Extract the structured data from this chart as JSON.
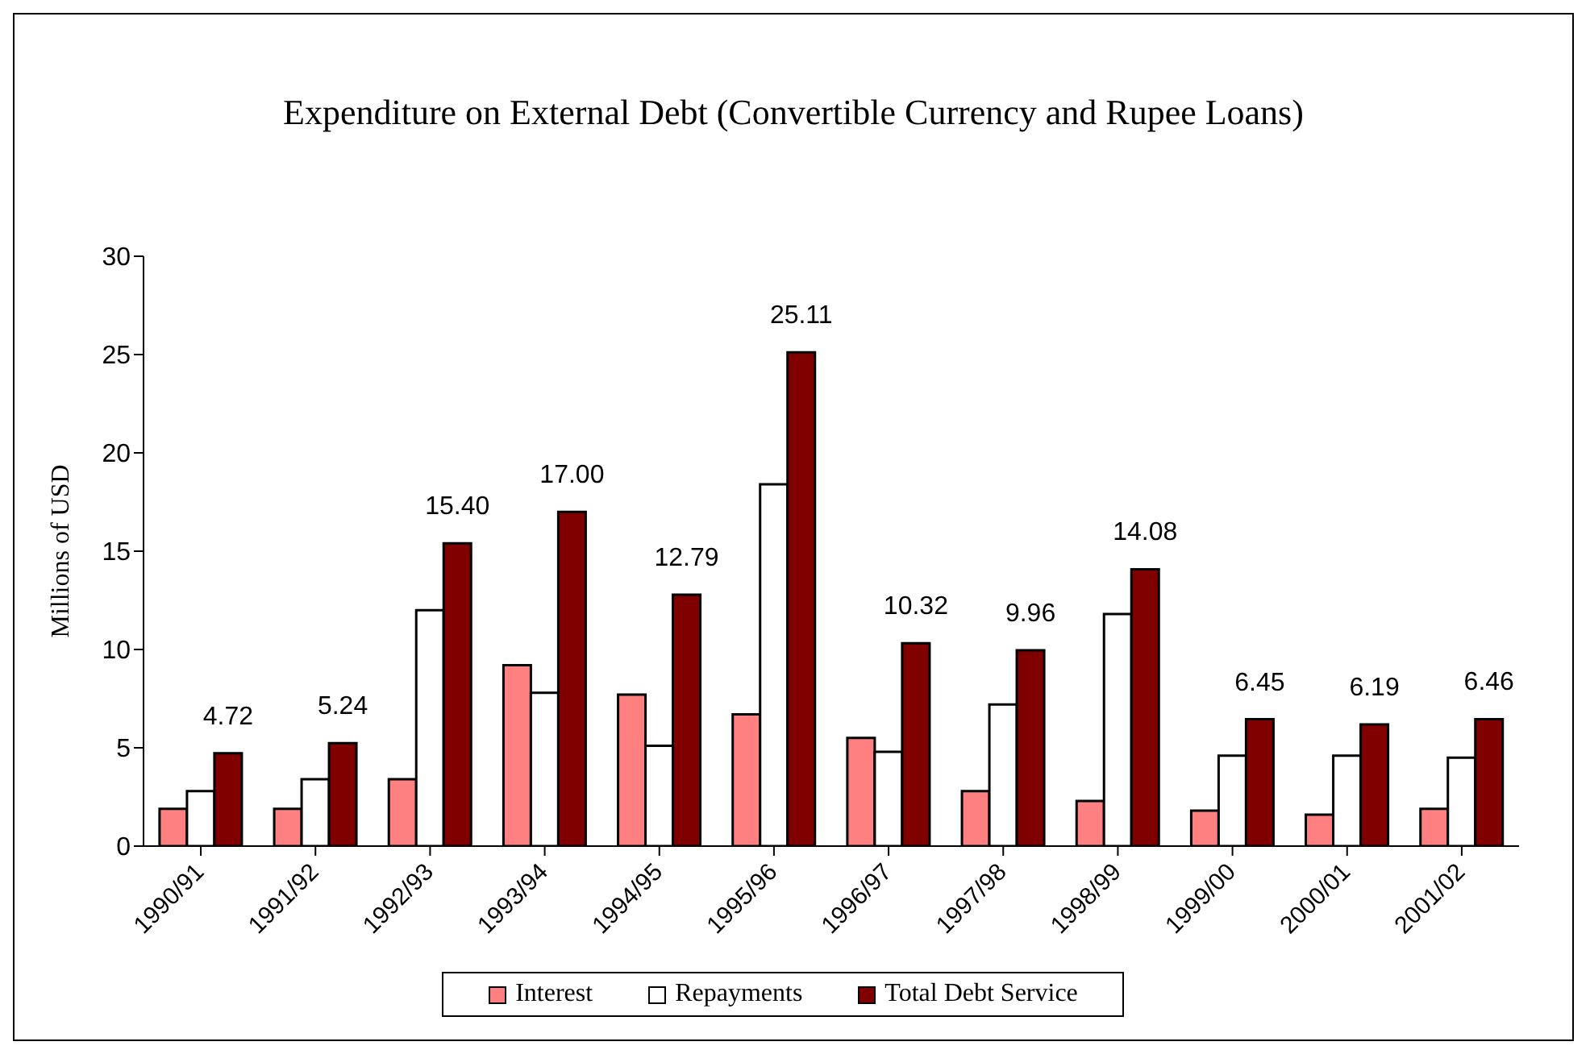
{
  "chart_data": {
    "type": "bar",
    "title": "Expenditure on External Debt (Convertible Currency and Rupee Loans)",
    "ylabel": "Millions of USD",
    "categories": [
      "1990/91",
      "1991/92",
      "1992/93",
      "1993/94",
      "1994/95",
      "1995/96",
      "1996/97",
      "1997/98",
      "1998/99",
      "1999/00",
      "2000/01",
      "2001/02"
    ],
    "series": [
      {
        "name": "Interest",
        "color": "#ff8080",
        "values": [
          1.9,
          1.9,
          3.4,
          9.2,
          7.7,
          6.7,
          5.5,
          2.8,
          2.3,
          1.8,
          1.6,
          1.9
        ]
      },
      {
        "name": "Repayments",
        "color": "#ffffff",
        "values": [
          2.8,
          3.4,
          12.0,
          7.8,
          5.1,
          18.4,
          4.8,
          7.2,
          11.8,
          4.6,
          4.6,
          4.5
        ]
      },
      {
        "name": "Total Debt Service",
        "color": "#800000",
        "values": [
          4.72,
          5.24,
          15.4,
          17.0,
          12.79,
          25.11,
          10.32,
          9.96,
          14.08,
          6.45,
          6.19,
          6.46
        ],
        "value_labels": [
          "4.72",
          "5.24",
          "15.40",
          "17.00",
          "12.79",
          "25.11",
          "10.32",
          "9.96",
          "14.08",
          "6.45",
          "6.19",
          "6.46"
        ]
      }
    ],
    "ylim": [
      0,
      30
    ],
    "yticks": [
      0,
      5,
      10,
      15,
      20,
      25,
      30
    ],
    "grid": false,
    "legend": "bottom"
  }
}
